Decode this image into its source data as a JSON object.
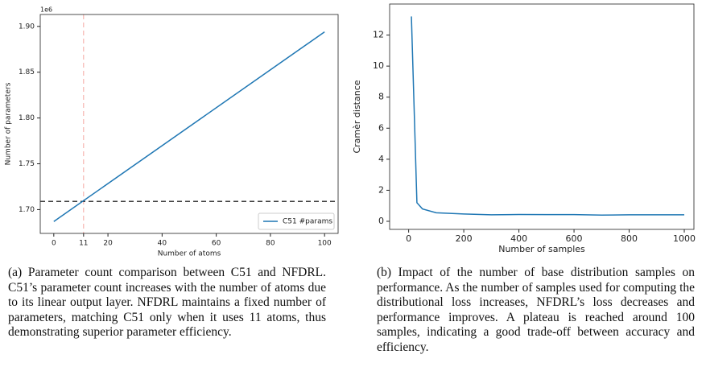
{
  "chart_data": [
    {
      "type": "line",
      "ylabel": "Number of parameters",
      "xlabel": "Number of atoms",
      "y_offset_label": "1e6",
      "xlim": [
        -5,
        105
      ],
      "xticks": [
        0,
        11,
        20,
        40,
        60,
        80,
        100
      ],
      "ylim": [
        1.674,
        1.913
      ],
      "yticks": [
        {
          "value": 1.7,
          "label": "1.70"
        },
        {
          "value": 1.75,
          "label": "1.75"
        },
        {
          "value": 1.8,
          "label": "1.80"
        },
        {
          "value": 1.85,
          "label": "1.85"
        },
        {
          "value": 1.9,
          "label": "1.90"
        }
      ],
      "series": [
        {
          "name": "C51 #params",
          "color": "#1f77b4",
          "x": [
            0,
            100
          ],
          "values": [
            1.687,
            1.894
          ]
        }
      ],
      "hline": {
        "value": 1.709,
        "color": "#000000"
      },
      "vline": {
        "value": 11,
        "color": "#f4a6a0"
      },
      "legend": "lower right",
      "caption": "(a) Parameter count comparison between C51 and NFDRL. C51’s parameter count increases with the number of atoms due to its linear output layer. NFDRL maintains a fixed number of parameters, matching C51 only when it uses 11 atoms, thus demonstrating superior parameter efficiency."
    },
    {
      "type": "line",
      "ylabel": "Cramèr distance",
      "xlabel": "Number of samples",
      "xlim": [
        -69,
        1035
      ],
      "xticks": [
        0,
        200,
        400,
        600,
        800,
        1000
      ],
      "ylim": [
        -0.52,
        14.0
      ],
      "yticks": [
        0,
        2,
        4,
        6,
        8,
        10,
        12
      ],
      "series": [
        {
          "name": "Cramèr distance",
          "color": "#1f77b4",
          "x": [
            10,
            30,
            50,
            100,
            200,
            300,
            400,
            500,
            600,
            700,
            800,
            900,
            1000
          ],
          "values": [
            13.2,
            1.2,
            0.8,
            0.55,
            0.47,
            0.42,
            0.44,
            0.43,
            0.43,
            0.4,
            0.42,
            0.42,
            0.42
          ]
        }
      ],
      "caption": "(b) Impact of the number of base distribution samples on performance. As the number of samples used for computing the distributional loss increases, NFDRL’s loss decreases and performance improves. A plateau is reached around 100 samples, indicating a good trade-off between accuracy and efficiency."
    }
  ]
}
